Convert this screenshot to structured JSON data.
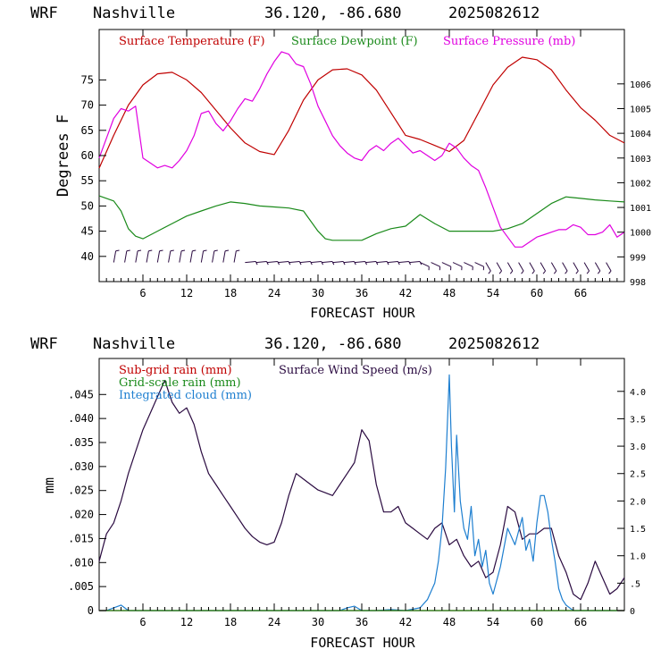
{
  "charts": [
    {
      "header": {
        "model": "WRF",
        "station": "Nashville",
        "coords": "36.120, -86.680",
        "run": "2025082612"
      },
      "xlabel": "FORECAST HOUR",
      "ylabel": "Degrees F",
      "legend": [
        "Surface Temperature (F)",
        "Surface Dewpoint (F)",
        "Surface Pressure (mb)"
      ],
      "colors": {
        "temperature": "#c00000",
        "dewpoint": "#1a8a1a",
        "pressure": "#e000e0",
        "barbs": "#2a0a40"
      }
    },
    {
      "header": {
        "model": "WRF",
        "station": "Nashville",
        "coords": "36.120, -86.680",
        "run": "2025082612"
      },
      "xlabel": "FORECAST HOUR",
      "ylabel": "mm",
      "legend": [
        "Sub-grid rain (mm)",
        "Surface Wind Speed (m/s)",
        "Grid-scale rain (mm)",
        "Integrated cloud (mm)"
      ],
      "colors": {
        "subgrid": "#c00000",
        "wind": "#2a0a40",
        "gridscale": "#1a8a1a",
        "cloud": "#1e7fd0"
      }
    }
  ],
  "chart_data": [
    {
      "type": "line",
      "x_ticks": [
        "6",
        "12",
        "18",
        "24",
        "30",
        "36",
        "42",
        "48",
        "54",
        "60",
        "66"
      ],
      "xlim": [
        0,
        72
      ],
      "y_left_ticks": [
        "40",
        "45",
        "50",
        "55",
        "60",
        "65",
        "70",
        "75"
      ],
      "ylim_left": [
        35,
        85
      ],
      "y_right_ticks": [
        "998",
        "999",
        "1000",
        "1001",
        "1002",
        "1003",
        "1004",
        "1005",
        "1006"
      ],
      "ylim_right": [
        998,
        1008.2
      ],
      "series": [
        {
          "name": "Surface Temperature (F)",
          "axis": "left",
          "x": [
            0,
            2,
            4,
            6,
            8,
            10,
            12,
            14,
            16,
            18,
            20,
            22,
            24,
            26,
            28,
            30,
            32,
            34,
            36,
            38,
            40,
            42,
            44,
            46,
            48,
            50,
            52,
            54,
            56,
            58,
            60,
            62,
            64,
            66,
            68,
            70,
            72
          ],
          "y": [
            57.5,
            64,
            70,
            74,
            76.2,
            76.5,
            75,
            72.5,
            69,
            65.5,
            62.5,
            60.8,
            60.2,
            65,
            71,
            75,
            77,
            77.2,
            76,
            73,
            68.5,
            64,
            63.2,
            62,
            60.8,
            63,
            68.5,
            74,
            77.5,
            79.5,
            79,
            77,
            73,
            69.5,
            67,
            64,
            62.5
          ]
        },
        {
          "name": "Surface Dewpoint (F)",
          "axis": "left",
          "x": [
            0,
            2,
            3,
            4,
            5,
            6,
            8,
            10,
            12,
            14,
            16,
            18,
            20,
            22,
            24,
            26,
            28,
            30,
            31,
            32,
            34,
            36,
            38,
            40,
            42,
            44,
            46,
            48,
            50,
            52,
            54,
            56,
            58,
            60,
            62,
            64,
            66,
            68,
            70,
            72
          ],
          "y": [
            52,
            51,
            49,
            45.5,
            44,
            43.5,
            45,
            46.5,
            48,
            49,
            50,
            50.8,
            50.5,
            50,
            49.8,
            49.6,
            49,
            45,
            43.5,
            43.2,
            43.2,
            43.2,
            44.5,
            45.5,
            46,
            48.3,
            46.5,
            45,
            45,
            45,
            45,
            45.5,
            46.5,
            48.5,
            50.5,
            51.8,
            51.5,
            51.2,
            51,
            50.8
          ]
        },
        {
          "name": "Surface Pressure (mb)",
          "axis": "right",
          "x": [
            0,
            1,
            2,
            3,
            4,
            5,
            6,
            7,
            8,
            9,
            10,
            11,
            12,
            13,
            14,
            15,
            16,
            17,
            18,
            19,
            20,
            21,
            22,
            23,
            24,
            25,
            26,
            27,
            28,
            29,
            30,
            31,
            32,
            33,
            34,
            35,
            36,
            37,
            38,
            39,
            40,
            41,
            42,
            43,
            44,
            45,
            46,
            47,
            48,
            49,
            50,
            51,
            52,
            53,
            54,
            55,
            56,
            57,
            58,
            59,
            60,
            61,
            62,
            63,
            64,
            65,
            66,
            67,
            68,
            69,
            70,
            71,
            72
          ],
          "y": [
            1003,
            1003.8,
            1004.6,
            1005,
            1004.9,
            1005.1,
            1003,
            1002.8,
            1002.6,
            1002.7,
            1002.6,
            1002.9,
            1003.3,
            1003.9,
            1004.8,
            1004.9,
            1004.4,
            1004.1,
            1004.5,
            1005,
            1005.4,
            1005.3,
            1005.8,
            1006.4,
            1006.9,
            1007.3,
            1007.2,
            1006.8,
            1006.7,
            1006,
            1005.1,
            1004.5,
            1003.9,
            1003.5,
            1003.2,
            1003,
            1002.9,
            1003.3,
            1003.5,
            1003.3,
            1003.6,
            1003.8,
            1003.5,
            1003.2,
            1003.3,
            1003.1,
            1002.9,
            1003.1,
            1003.6,
            1003.4,
            1003,
            1002.7,
            1002.5,
            1001.8,
            1001,
            1000.2,
            999.8,
            999.4,
            999.4,
            999.6,
            999.8,
            999.9,
            1000,
            1000.1,
            1000.1,
            1000.3,
            1000.2,
            999.9,
            999.9,
            1000,
            1000.3,
            999.8,
            1000
          ]
        }
      ]
    },
    {
      "type": "line",
      "x_ticks": [
        "6",
        "12",
        "18",
        "24",
        "30",
        "36",
        "42",
        "48",
        "54",
        "60",
        "66"
      ],
      "xlim": [
        0,
        72
      ],
      "y_left_ticks": [
        "0",
        ".005",
        ".010",
        ".015",
        ".020",
        ".025",
        ".030",
        ".035",
        ".040",
        ".045"
      ],
      "ylim_left": [
        0,
        0.0525
      ],
      "y_right_ticks": [
        "0",
        ".5",
        "1.0",
        "1.5",
        "2.0",
        "2.5",
        "3.0",
        "3.5",
        "4.0"
      ],
      "ylim_right": [
        0,
        4.6
      ],
      "series": [
        {
          "name": "Surface Wind Speed (m/s)",
          "axis": "right",
          "x": [
            0,
            1,
            2,
            3,
            4,
            5,
            6,
            7,
            8,
            9,
            10,
            11,
            12,
            13,
            14,
            15,
            16,
            17,
            18,
            19,
            20,
            21,
            22,
            23,
            24,
            25,
            26,
            27,
            28,
            29,
            30,
            31,
            32,
            33,
            34,
            35,
            36,
            37,
            38,
            39,
            40,
            41,
            42,
            43,
            44,
            45,
            46,
            47,
            48,
            49,
            50,
            51,
            52,
            53,
            54,
            55,
            56,
            57,
            58,
            59,
            60,
            61,
            62,
            63,
            64,
            65,
            66,
            67,
            68,
            69,
            70,
            71,
            72
          ],
          "y": [
            0.9,
            1.4,
            1.6,
            2.0,
            2.5,
            2.9,
            3.3,
            3.6,
            3.9,
            4.2,
            3.8,
            3.6,
            3.7,
            3.4,
            2.9,
            2.5,
            2.3,
            2.1,
            1.9,
            1.7,
            1.5,
            1.35,
            1.25,
            1.2,
            1.25,
            1.6,
            2.1,
            2.5,
            2.4,
            2.3,
            2.2,
            2.15,
            2.1,
            2.3,
            2.5,
            2.7,
            3.3,
            3.1,
            2.3,
            1.8,
            1.8,
            1.9,
            1.6,
            1.5,
            1.4,
            1.3,
            1.5,
            1.6,
            1.2,
            1.3,
            1.0,
            0.8,
            0.9,
            0.6,
            0.7,
            1.2,
            1.9,
            1.8,
            1.3,
            1.4,
            1.4,
            1.5,
            1.5,
            1.0,
            0.7,
            0.3,
            0.2,
            0.5,
            0.9,
            0.6,
            0.3,
            0.4,
            0.6
          ]
        },
        {
          "name": "Integrated cloud (mm)",
          "axis": "right",
          "x": [
            0,
            1,
            2,
            3,
            4,
            5,
            6,
            7,
            8,
            10,
            15,
            20,
            25,
            30,
            33,
            34,
            35,
            36,
            38,
            40,
            42,
            44,
            45,
            46,
            46.5,
            47,
            47.5,
            48,
            48.3,
            48.7,
            49,
            49.5,
            50,
            50.5,
            51,
            51.5,
            52,
            52.5,
            53,
            53.5,
            54,
            55,
            56,
            57,
            58,
            58.5,
            59,
            59.5,
            60,
            60.5,
            61,
            61.5,
            62,
            62.5,
            63,
            63.5,
            64,
            65,
            66,
            68,
            70,
            72
          ],
          "y": [
            0,
            0,
            0.05,
            0.1,
            0,
            0,
            0,
            0,
            0,
            0,
            0,
            0,
            0,
            0,
            0,
            0.05,
            0.08,
            0,
            0,
            0.02,
            0,
            0.05,
            0.2,
            0.5,
            0.9,
            1.5,
            2.6,
            4.3,
            3.0,
            1.8,
            3.2,
            2.0,
            1.5,
            1.3,
            1.9,
            1.0,
            1.3,
            0.8,
            1.1,
            0.5,
            0.3,
            0.8,
            1.5,
            1.2,
            1.7,
            1.1,
            1.3,
            0.9,
            1.6,
            2.1,
            2.1,
            1.8,
            1.3,
            0.9,
            0.4,
            0.2,
            0.1,
            0,
            0,
            0,
            0,
            0
          ]
        },
        {
          "name": "Sub-grid rain (mm)",
          "axis": "left",
          "x": [
            0,
            72
          ],
          "y": [
            0,
            0
          ]
        },
        {
          "name": "Grid-scale rain (mm)",
          "axis": "left",
          "x": [
            0,
            72
          ],
          "y": [
            0,
            0
          ]
        }
      ]
    }
  ]
}
